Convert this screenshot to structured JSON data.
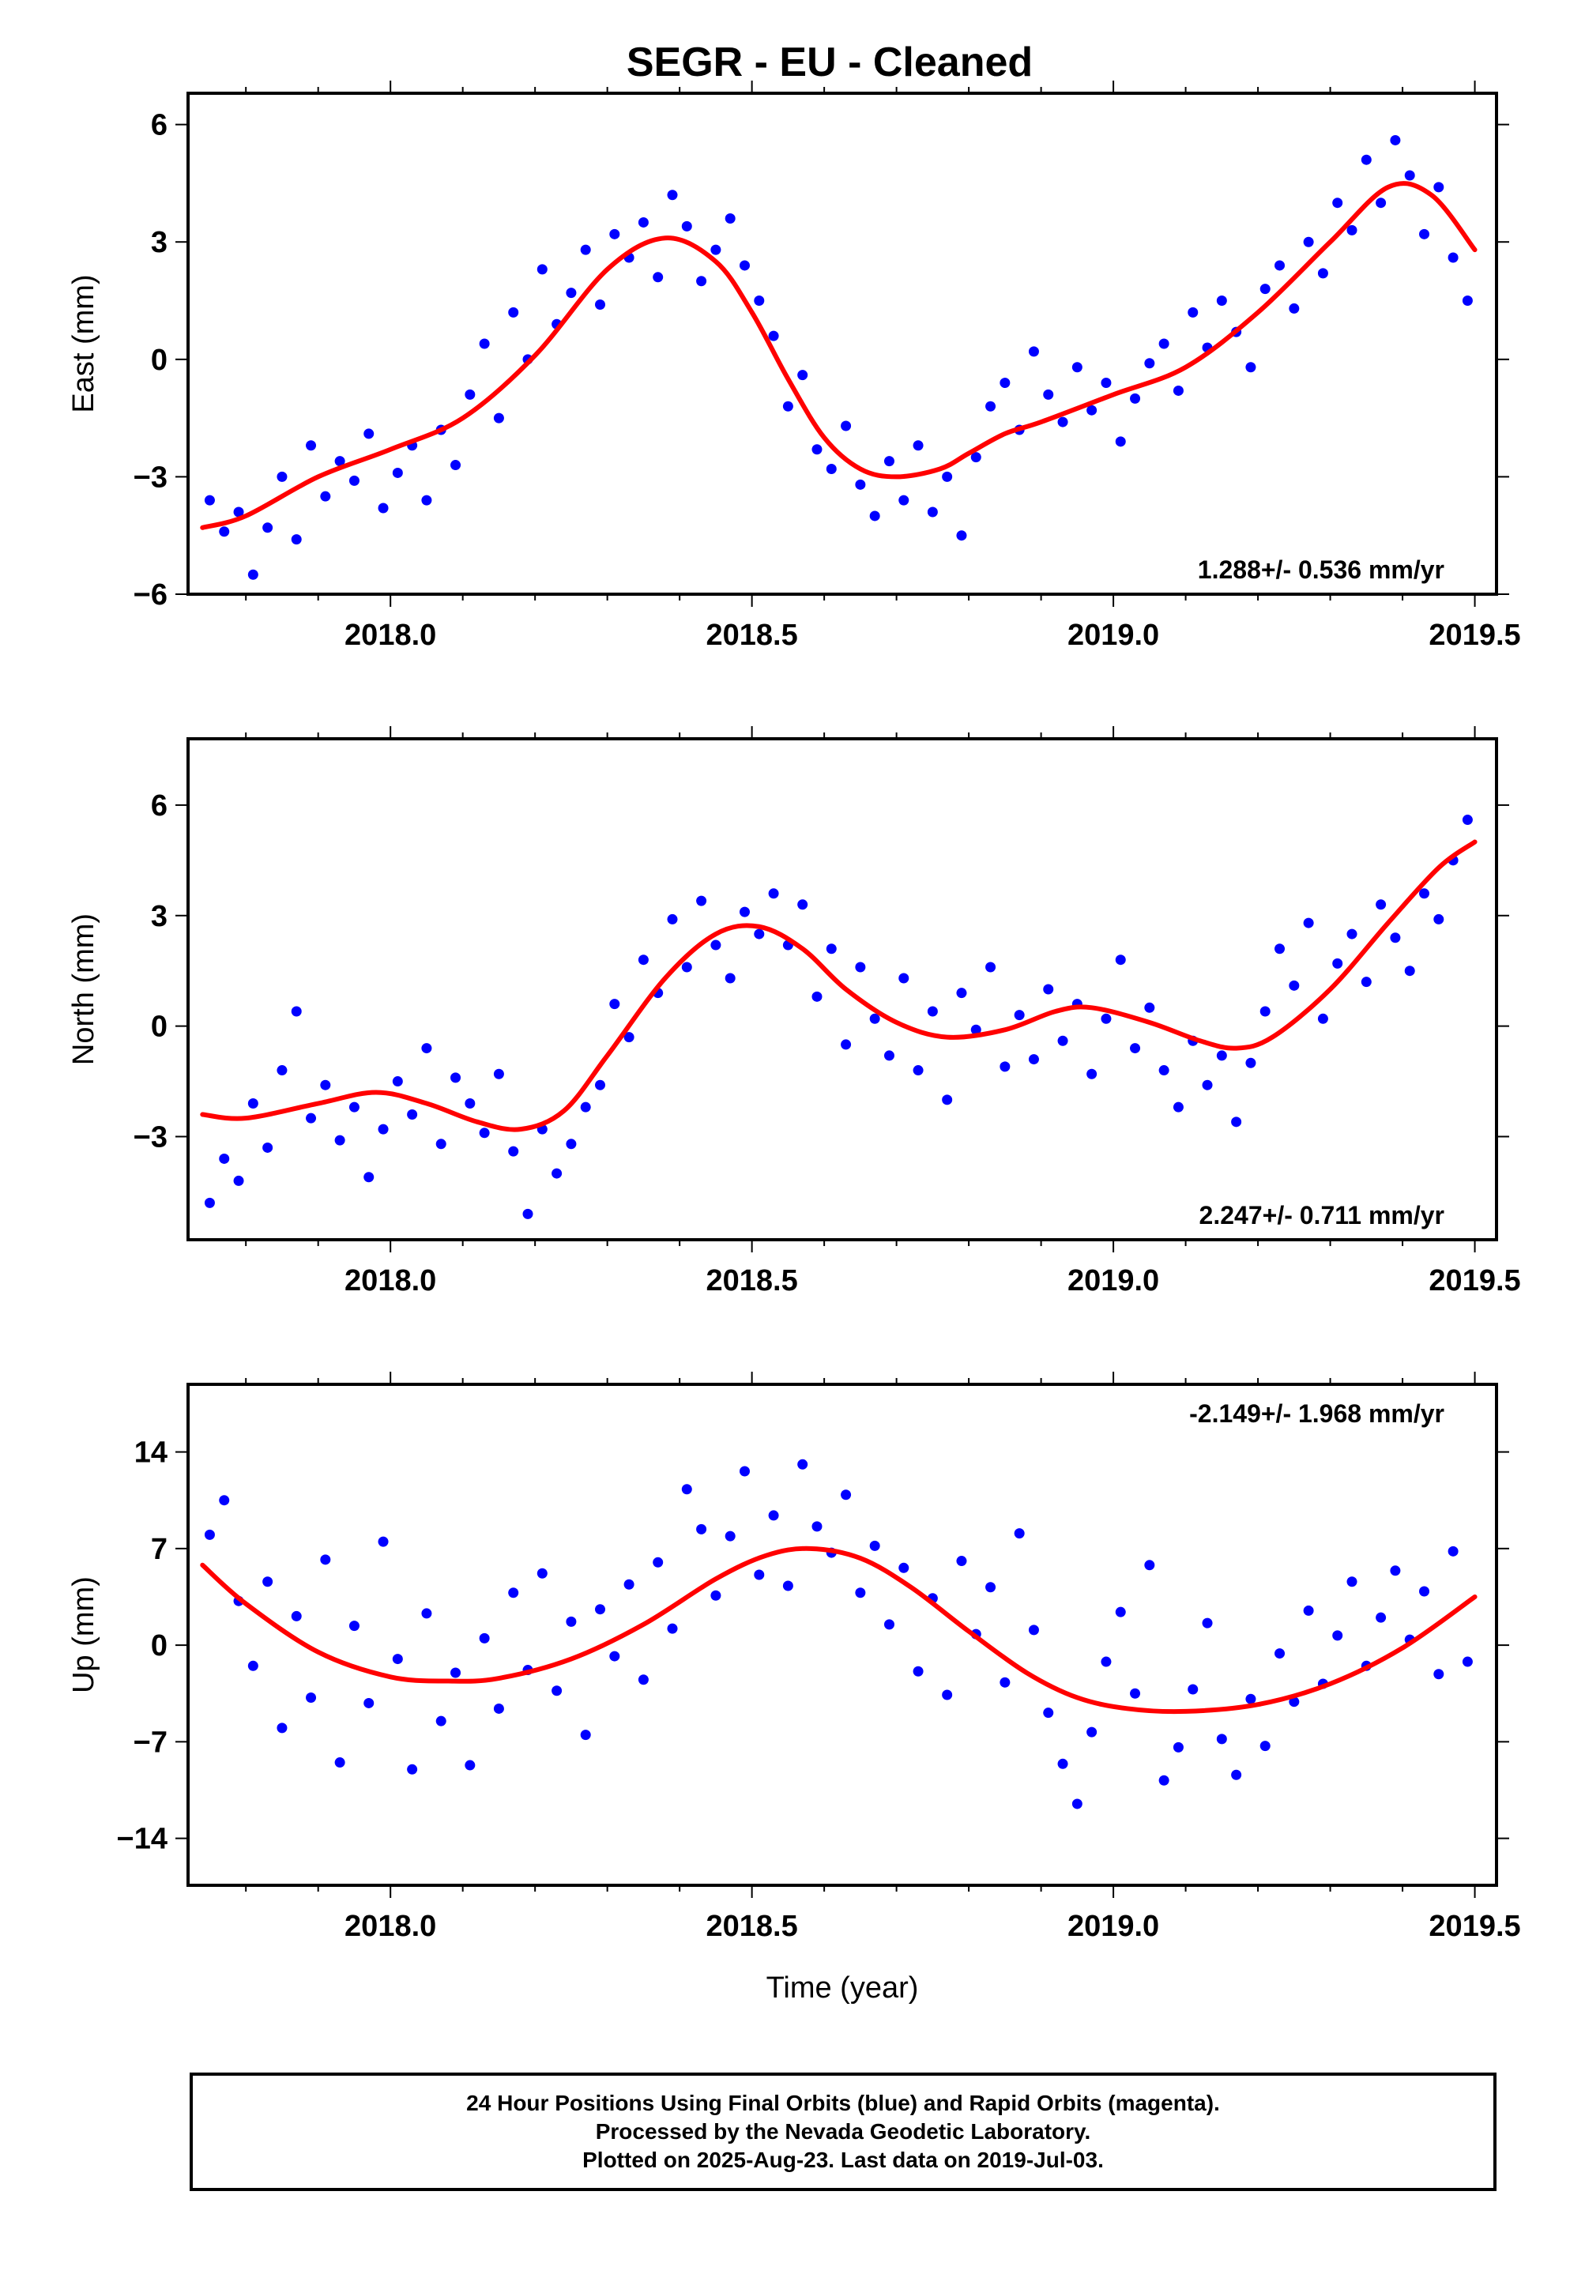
{
  "title": "SEGR  - EU - Cleaned",
  "colors": {
    "points": "#0000ff",
    "fit": "#ff0000",
    "axis": "#000000"
  },
  "footer": {
    "line1": "24 Hour Positions Using Final Orbits (blue) and Rapid Orbits (magenta).",
    "line2": "Processed by the Nevada Geodetic Laboratory.",
    "line3": "Plotted on 2025-Aug-23. Last data on 2019-Jul-03."
  },
  "chart_data": [
    {
      "type": "scatter",
      "title": "SEGR  - EU - Cleaned",
      "xlabel": "",
      "ylabel": "East (mm)",
      "xlim": [
        2017.72,
        2019.53
      ],
      "ylim": [
        -6,
        6.8
      ],
      "xticks": [
        2018.0,
        2018.5,
        2019.0,
        2019.5
      ],
      "xtick_labels": [
        "2018.0",
        "2018.5",
        "2019.0",
        "2019.5"
      ],
      "yticks": [
        -6,
        -3,
        0,
        3,
        6
      ],
      "ytick_labels": [
        "−6",
        "−3",
        "0",
        "3",
        "6"
      ],
      "annotation": "1.288+/- 0.536 mm/yr",
      "annotation_corner": "bottom-right",
      "series": [
        {
          "kind": "scatter",
          "x": [
            2017.75,
            2017.77,
            2017.79,
            2017.81,
            2017.83,
            2017.85,
            2017.87,
            2017.89,
            2017.91,
            2017.93,
            2017.95,
            2017.97,
            2017.99,
            2018.01,
            2018.03,
            2018.05,
            2018.07,
            2018.09,
            2018.11,
            2018.13,
            2018.15,
            2018.17,
            2018.19,
            2018.21,
            2018.23,
            2018.25,
            2018.27,
            2018.29,
            2018.31,
            2018.33,
            2018.35,
            2018.37,
            2018.39,
            2018.41,
            2018.43,
            2018.45,
            2018.47,
            2018.49,
            2018.51,
            2018.53,
            2018.55,
            2018.57,
            2018.59,
            2018.61,
            2018.63,
            2018.65,
            2018.67,
            2018.69,
            2018.71,
            2018.73,
            2018.75,
            2018.77,
            2018.79,
            2018.81,
            2018.83,
            2018.85,
            2018.87,
            2018.89,
            2018.91,
            2018.93,
            2018.95,
            2018.97,
            2018.99,
            2019.01,
            2019.03,
            2019.05,
            2019.07,
            2019.09,
            2019.11,
            2019.13,
            2019.15,
            2019.17,
            2019.19,
            2019.21,
            2019.23,
            2019.25,
            2019.27,
            2019.29,
            2019.31,
            2019.33,
            2019.35,
            2019.37,
            2019.39,
            2019.41,
            2019.43,
            2019.45,
            2019.47,
            2019.49
          ],
          "y": [
            -3.6,
            -4.4,
            -3.9,
            -5.5,
            -4.3,
            -3.0,
            -4.6,
            -2.2,
            -3.5,
            -2.6,
            -3.1,
            -1.9,
            -3.8,
            -2.9,
            -2.2,
            -3.6,
            -1.8,
            -2.7,
            -0.9,
            0.4,
            -1.5,
            1.2,
            0.0,
            2.3,
            0.9,
            1.7,
            2.8,
            1.4,
            3.2,
            2.6,
            3.5,
            2.1,
            4.2,
            3.4,
            2.0,
            2.8,
            3.6,
            2.4,
            1.5,
            0.6,
            -1.2,
            -0.4,
            -2.3,
            -2.8,
            -1.7,
            -3.2,
            -4.0,
            -2.6,
            -3.6,
            -2.2,
            -3.9,
            -3.0,
            -4.5,
            -2.5,
            -1.2,
            -0.6,
            -1.8,
            0.2,
            -0.9,
            -1.6,
            -0.2,
            -1.3,
            -0.6,
            -2.1,
            -1.0,
            -0.1,
            0.4,
            -0.8,
            1.2,
            0.3,
            1.5,
            0.7,
            -0.2,
            1.8,
            2.4,
            1.3,
            3.0,
            2.2,
            4.0,
            3.3,
            5.1,
            4.0,
            5.6,
            4.7,
            3.2,
            4.4,
            2.6,
            1.5
          ]
        },
        {
          "kind": "line",
          "x": [
            2017.74,
            2017.8,
            2017.9,
            2018.0,
            2018.1,
            2018.2,
            2018.3,
            2018.38,
            2018.45,
            2018.5,
            2018.55,
            2018.6,
            2018.65,
            2018.7,
            2018.76,
            2018.8,
            2018.85,
            2018.9,
            2019.0,
            2019.1,
            2019.2,
            2019.3,
            2019.38,
            2019.44,
            2019.5
          ],
          "y": [
            -4.3,
            -4.0,
            -3.0,
            -2.3,
            -1.5,
            0.1,
            2.3,
            3.1,
            2.5,
            1.2,
            -0.5,
            -2.0,
            -2.8,
            -3.0,
            -2.8,
            -2.4,
            -1.9,
            -1.6,
            -0.9,
            -0.2,
            1.2,
            3.0,
            4.4,
            4.2,
            2.8
          ]
        }
      ]
    },
    {
      "type": "scatter",
      "title": "",
      "xlabel": "",
      "ylabel": "North (mm)",
      "xlim": [
        2017.72,
        2019.53
      ],
      "ylim": [
        -5.8,
        7.8
      ],
      "xticks": [
        2018.0,
        2018.5,
        2019.0,
        2019.5
      ],
      "xtick_labels": [
        "2018.0",
        "2018.5",
        "2019.0",
        "2019.5"
      ],
      "yticks": [
        -3,
        0,
        3,
        6
      ],
      "ytick_labels": [
        "−3",
        "0",
        "3",
        "6"
      ],
      "annotation": "2.247+/- 0.711 mm/yr",
      "annotation_corner": "bottom-right",
      "series": [
        {
          "kind": "scatter",
          "x": [
            2017.75,
            2017.77,
            2017.79,
            2017.81,
            2017.83,
            2017.85,
            2017.87,
            2017.89,
            2017.91,
            2017.93,
            2017.95,
            2017.97,
            2017.99,
            2018.01,
            2018.03,
            2018.05,
            2018.07,
            2018.09,
            2018.11,
            2018.13,
            2018.15,
            2018.17,
            2018.19,
            2018.21,
            2018.23,
            2018.25,
            2018.27,
            2018.29,
            2018.31,
            2018.33,
            2018.35,
            2018.37,
            2018.39,
            2018.41,
            2018.43,
            2018.45,
            2018.47,
            2018.49,
            2018.51,
            2018.53,
            2018.55,
            2018.57,
            2018.59,
            2018.61,
            2018.63,
            2018.65,
            2018.67,
            2018.69,
            2018.71,
            2018.73,
            2018.75,
            2018.77,
            2018.79,
            2018.81,
            2018.83,
            2018.85,
            2018.87,
            2018.89,
            2018.91,
            2018.93,
            2018.95,
            2018.97,
            2018.99,
            2019.01,
            2019.03,
            2019.05,
            2019.07,
            2019.09,
            2019.11,
            2019.13,
            2019.15,
            2019.17,
            2019.19,
            2019.21,
            2019.23,
            2019.25,
            2019.27,
            2019.29,
            2019.31,
            2019.33,
            2019.35,
            2019.37,
            2019.39,
            2019.41,
            2019.43,
            2019.45,
            2019.47,
            2019.49
          ],
          "y": [
            -4.8,
            -3.6,
            -4.2,
            -2.1,
            -3.3,
            -1.2,
            0.4,
            -2.5,
            -1.6,
            -3.1,
            -2.2,
            -4.1,
            -2.8,
            -1.5,
            -2.4,
            -0.6,
            -3.2,
            -1.4,
            -2.1,
            -2.9,
            -1.3,
            -3.4,
            -5.1,
            -2.8,
            -4.0,
            -3.2,
            -2.2,
            -1.6,
            0.6,
            -0.3,
            1.8,
            0.9,
            2.9,
            1.6,
            3.4,
            2.2,
            1.3,
            3.1,
            2.5,
            3.6,
            2.2,
            3.3,
            0.8,
            2.1,
            -0.5,
            1.6,
            0.2,
            -0.8,
            1.3,
            -1.2,
            0.4,
            -2.0,
            0.9,
            -0.1,
            1.6,
            -1.1,
            0.3,
            -0.9,
            1.0,
            -0.4,
            0.6,
            -1.3,
            0.2,
            1.8,
            -0.6,
            0.5,
            -1.2,
            -2.2,
            -0.4,
            -1.6,
            -0.8,
            -2.6,
            -1.0,
            0.4,
            2.1,
            1.1,
            2.8,
            0.2,
            1.7,
            2.5,
            1.2,
            3.3,
            2.4,
            1.5,
            3.6,
            2.9,
            4.5,
            5.6
          ]
        },
        {
          "kind": "line",
          "x": [
            2017.74,
            2017.8,
            2017.9,
            2017.98,
            2018.05,
            2018.12,
            2018.18,
            2018.24,
            2018.3,
            2018.38,
            2018.45,
            2018.51,
            2018.57,
            2018.63,
            2018.7,
            2018.77,
            2018.85,
            2018.92,
            2018.97,
            2019.05,
            2019.12,
            2019.17,
            2019.22,
            2019.3,
            2019.38,
            2019.45,
            2019.5
          ],
          "y": [
            -2.4,
            -2.5,
            -2.1,
            -1.8,
            -2.1,
            -2.6,
            -2.8,
            -2.3,
            -0.8,
            1.3,
            2.5,
            2.7,
            2.1,
            1.0,
            0.1,
            -0.3,
            -0.1,
            0.4,
            0.5,
            0.1,
            -0.4,
            -0.6,
            -0.3,
            1.0,
            2.8,
            4.3,
            5.0
          ]
        }
      ]
    },
    {
      "type": "scatter",
      "title": "",
      "xlabel": "Time (year)",
      "ylabel": "Up (mm)",
      "xlim": [
        2017.72,
        2019.53
      ],
      "ylim": [
        -17.4,
        18.9
      ],
      "xticks": [
        2018.0,
        2018.5,
        2019.0,
        2019.5
      ],
      "xtick_labels": [
        "2018.0",
        "2018.5",
        "2019.0",
        "2019.5"
      ],
      "yticks": [
        -14,
        -7,
        0,
        7,
        14
      ],
      "ytick_labels": [
        "−14",
        "−7",
        "0",
        "7",
        "14"
      ],
      "annotation": "-2.149+/- 1.968 mm/yr",
      "annotation_corner": "top-right",
      "series": [
        {
          "kind": "scatter",
          "x": [
            2017.75,
            2017.77,
            2017.79,
            2017.81,
            2017.83,
            2017.85,
            2017.87,
            2017.89,
            2017.91,
            2017.93,
            2017.95,
            2017.97,
            2017.99,
            2018.01,
            2018.03,
            2018.05,
            2018.07,
            2018.09,
            2018.11,
            2018.13,
            2018.15,
            2018.17,
            2018.19,
            2018.21,
            2018.23,
            2018.25,
            2018.27,
            2018.29,
            2018.31,
            2018.33,
            2018.35,
            2018.37,
            2018.39,
            2018.41,
            2018.43,
            2018.45,
            2018.47,
            2018.49,
            2018.51,
            2018.53,
            2018.55,
            2018.57,
            2018.59,
            2018.61,
            2018.63,
            2018.65,
            2018.67,
            2018.69,
            2018.71,
            2018.73,
            2018.75,
            2018.77,
            2018.79,
            2018.81,
            2018.83,
            2018.85,
            2018.87,
            2018.89,
            2018.91,
            2018.93,
            2018.95,
            2018.97,
            2018.99,
            2019.01,
            2019.03,
            2019.05,
            2019.07,
            2019.09,
            2019.11,
            2019.13,
            2019.15,
            2019.17,
            2019.19,
            2019.21,
            2019.23,
            2019.25,
            2019.27,
            2019.29,
            2019.31,
            2019.33,
            2019.35,
            2019.37,
            2019.39,
            2019.41,
            2019.43,
            2019.45,
            2019.47,
            2019.49
          ],
          "y": [
            8.0,
            10.5,
            3.2,
            -1.5,
            4.6,
            -6.0,
            2.1,
            -3.8,
            6.2,
            -8.5,
            1.4,
            -4.2,
            7.5,
            -1.0,
            -9.0,
            2.3,
            -5.5,
            -2.0,
            -8.7,
            0.5,
            -4.6,
            3.8,
            -1.8,
            5.2,
            -3.3,
            1.7,
            -6.5,
            2.6,
            -0.8,
            4.4,
            -2.5,
            6.0,
            1.2,
            11.3,
            8.4,
            3.6,
            7.9,
            12.6,
            5.1,
            9.4,
            4.3,
            13.1,
            8.6,
            6.7,
            10.9,
            3.8,
            7.2,
            1.5,
            5.6,
            -1.9,
            3.4,
            -3.6,
            6.1,
            0.8,
            4.2,
            -2.7,
            8.1,
            1.1,
            -4.9,
            -8.6,
            -11.5,
            -6.3,
            -1.2,
            2.4,
            -3.5,
            5.8,
            -9.8,
            -7.4,
            -3.2,
            1.6,
            -6.8,
            -9.4,
            -3.9,
            -7.3,
            -0.6,
            -4.1,
            2.5,
            -2.8,
            0.7,
            4.6,
            -1.5,
            2.0,
            5.4,
            0.4,
            3.9,
            -2.1,
            6.8,
            -1.2
          ]
        },
        {
          "kind": "line",
          "x": [
            2017.74,
            2017.8,
            2017.9,
            2018.0,
            2018.08,
            2018.15,
            2018.25,
            2018.35,
            2018.45,
            2018.52,
            2018.58,
            2018.65,
            2018.72,
            2018.8,
            2018.88,
            2018.95,
            2019.02,
            2019.1,
            2019.2,
            2019.3,
            2019.4,
            2019.5
          ],
          "y": [
            5.8,
            3.0,
            -0.5,
            -2.3,
            -2.6,
            -2.4,
            -1.0,
            1.5,
            4.8,
            6.5,
            7.0,
            6.3,
            4.2,
            1.0,
            -2.0,
            -3.8,
            -4.6,
            -4.8,
            -4.3,
            -2.8,
            -0.2,
            3.5
          ]
        }
      ]
    }
  ]
}
